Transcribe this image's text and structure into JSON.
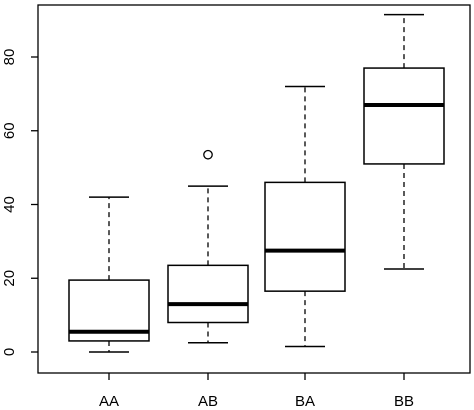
{
  "chart_data": {
    "type": "boxplot",
    "title": "",
    "xlabel": "",
    "ylabel": "",
    "ylim": [
      -5.5,
      95
    ],
    "yticks": [
      "0",
      "20",
      "40",
      "60",
      "80"
    ],
    "grid": false,
    "categories": [
      "AA",
      "AB",
      "BA",
      "BB"
    ],
    "boxes": [
      {
        "name": "AA",
        "whisker_low": 0,
        "q1": 3,
        "median": 5.5,
        "q3": 19.5,
        "whisker_high": 42,
        "outliers": []
      },
      {
        "name": "AB",
        "whisker_low": 2.5,
        "q1": 8,
        "median": 13,
        "q3": 23.5,
        "whisker_high": 45,
        "outliers": [
          53.5
        ]
      },
      {
        "name": "BA",
        "whisker_low": 1.5,
        "q1": 16.5,
        "median": 27.5,
        "q3": 46,
        "whisker_high": 72,
        "outliers": []
      },
      {
        "name": "BB",
        "whisker_low": 22.5,
        "q1": 51,
        "median": 67,
        "q3": 77,
        "whisker_high": 91.5,
        "outliers": []
      }
    ]
  }
}
